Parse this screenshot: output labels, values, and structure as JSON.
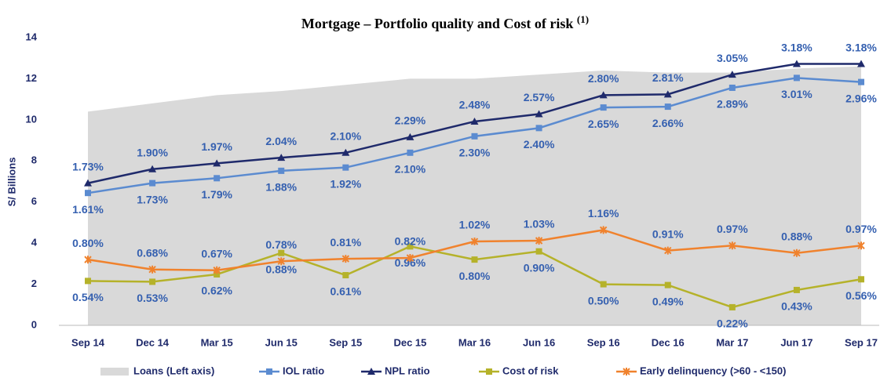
{
  "chart_data": {
    "type": "line",
    "title": "Mortgage – Portfolio quality and Cost of risk",
    "title_note": "(1)",
    "ylabel": "S/ Billions",
    "categories": [
      "Sep 14",
      "Dec 14",
      "Mar 15",
      "Jun 15",
      "Sep 15",
      "Dec 15",
      "Mar 16",
      "Jun 16",
      "Sep 16",
      "Dec 16",
      "Mar 17",
      "Jun 17",
      "Sep 17"
    ],
    "ylim": [
      0,
      14
    ],
    "yticks": [
      0,
      2,
      4,
      6,
      8,
      10,
      12,
      14
    ],
    "y2lim": [
      0,
      3.5
    ],
    "area": {
      "name": "Loans (Left axis)",
      "color": "#d9d9d9",
      "values": [
        10.4,
        10.8,
        11.2,
        11.4,
        11.7,
        12.0,
        12.0,
        12.2,
        12.4,
        12.3,
        12.3,
        12.5,
        12.6
      ]
    },
    "series": [
      {
        "name": "IOL ratio",
        "color": "#5b8bd0",
        "axis": "y2",
        "marker": "square",
        "label_position": "below",
        "values": [
          1.61,
          1.73,
          1.79,
          1.88,
          1.92,
          2.1,
          2.3,
          2.4,
          2.65,
          2.66,
          2.89,
          3.01,
          2.96
        ],
        "value_labels": [
          "1.61%",
          "1.73%",
          "1.79%",
          "1.88%",
          "1.92%",
          "2.10%",
          "2.30%",
          "2.40%",
          "2.65%",
          "2.66%",
          "2.89%",
          "3.01%",
          "2.96%"
        ]
      },
      {
        "name": "NPL ratio",
        "color": "#1f2a6b",
        "axis": "y2",
        "marker": "triangle",
        "label_position": "above",
        "values": [
          1.73,
          1.9,
          1.97,
          2.04,
          2.1,
          2.29,
          2.48,
          2.57,
          2.8,
          2.81,
          3.05,
          3.18,
          3.18
        ],
        "value_labels": [
          "1.73%",
          "1.90%",
          "1.97%",
          "2.04%",
          "2.10%",
          "2.29%",
          "2.48%",
          "2.57%",
          "2.80%",
          "2.81%",
          "3.05%",
          "3.18%",
          "3.18%"
        ]
      },
      {
        "name": "Cost of risk",
        "color": "#b5b22a",
        "axis": "y2",
        "marker": "square",
        "label_position": "below",
        "values": [
          0.54,
          0.53,
          0.62,
          0.88,
          0.61,
          0.96,
          0.8,
          0.9,
          0.5,
          0.49,
          0.22,
          0.43,
          0.56
        ],
        "value_labels": [
          "0.54%",
          "0.53%",
          "0.62%",
          "0.88%",
          "0.61%",
          "0.96%",
          "0.80%",
          "0.90%",
          "0.50%",
          "0.49%",
          "0.22%",
          "0.43%",
          "0.56%"
        ]
      },
      {
        "name": "Early delinquency  (>60 - <150)",
        "color": "#f0822d",
        "axis": "y2",
        "marker": "star",
        "label_position": "above",
        "values": [
          0.8,
          0.68,
          0.67,
          0.78,
          0.81,
          0.82,
          1.02,
          1.03,
          1.16,
          0.91,
          0.97,
          0.88,
          0.97
        ],
        "value_labels": [
          "0.80%",
          "0.68%",
          "0.67%",
          "0.78%",
          "0.81%",
          "0.82%",
          "1.02%",
          "1.03%",
          "1.16%",
          "0.91%",
          "0.97%",
          "0.88%",
          "0.97%"
        ]
      }
    ]
  }
}
